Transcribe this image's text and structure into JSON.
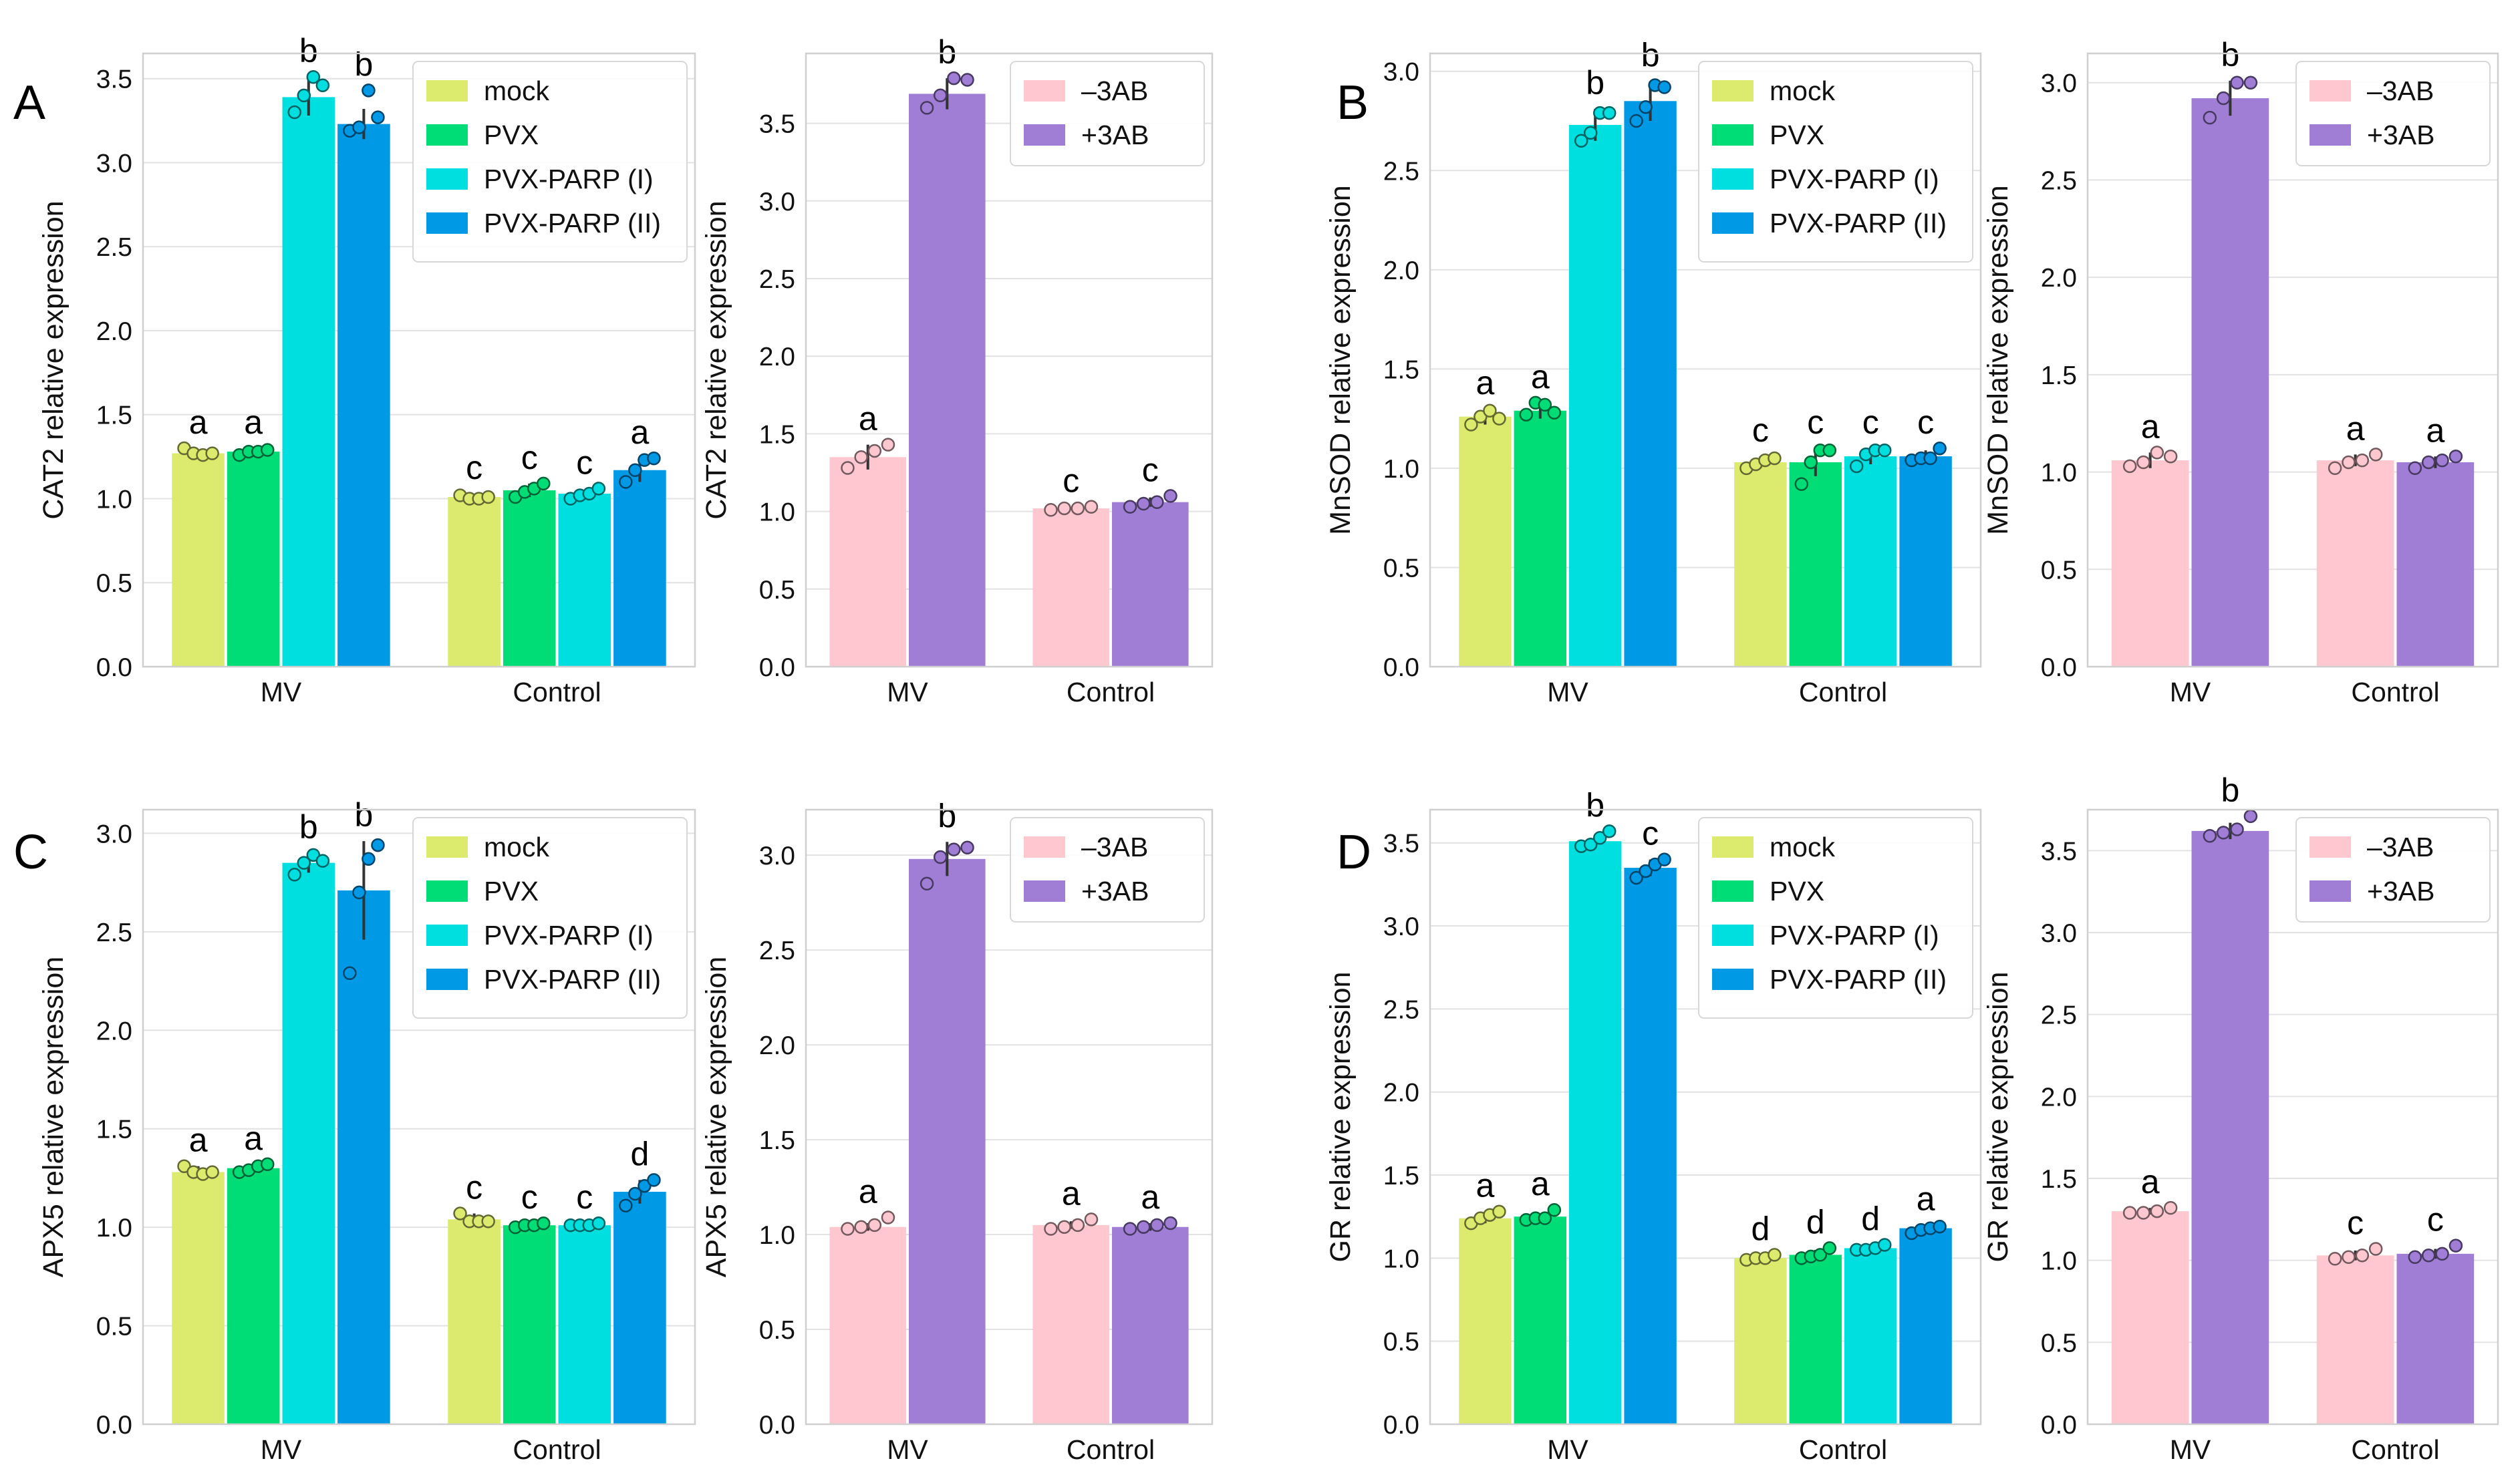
{
  "colors": {
    "mock": "#dcea6e",
    "PVX": "#00dd77",
    "PVX-PARP (I)": "#00dfdf",
    "PVX-PARP (II)": "#0099e6",
    "–3AB": "#ffc8d0",
    "+3AB": "#a07ed6"
  },
  "chart_data": [
    {
      "panel_letter": "A",
      "type": "bar",
      "ylabel": "CAT2 relative expression",
      "ylim": [
        0,
        3.65
      ],
      "yticks": [
        0.0,
        0.5,
        1.0,
        1.5,
        2.0,
        2.5,
        3.0,
        3.5
      ],
      "categories": [
        "MV",
        "Control"
      ],
      "series": [
        {
          "name": "mock",
          "values": [
            1.27,
            1.01
          ],
          "err": [
            0.02,
            0.02
          ],
          "letters": [
            "a",
            "c"
          ],
          "points": [
            [
              1.3,
              1.27,
              1.26,
              1.27
            ],
            [
              1.02,
              1.0,
              1.0,
              1.01
            ]
          ]
        },
        {
          "name": "PVX",
          "values": [
            1.28,
            1.05
          ],
          "err": [
            0.02,
            0.04
          ],
          "letters": [
            "a",
            "c"
          ],
          "points": [
            [
              1.26,
              1.28,
              1.28,
              1.29
            ],
            [
              1.01,
              1.04,
              1.06,
              1.09
            ]
          ]
        },
        {
          "name": "PVX-PARP (I)",
          "values": [
            3.39,
            1.03
          ],
          "err": [
            0.11,
            0.02
          ],
          "letters": [
            "b",
            "c"
          ],
          "points": [
            [
              3.3,
              3.4,
              3.51,
              3.46
            ],
            [
              1.0,
              1.02,
              1.03,
              1.06
            ]
          ]
        },
        {
          "name": "PVX-PARP (II)",
          "values": [
            3.23,
            1.17
          ],
          "err": [
            0.09,
            0.07
          ],
          "letters": [
            "b",
            "a"
          ],
          "points": [
            [
              3.19,
              3.21,
              3.43,
              3.27
            ],
            [
              1.1,
              1.17,
              1.23,
              1.24
            ]
          ]
        }
      ]
    },
    {
      "type": "bar",
      "ylabel": "CAT2 relative expression",
      "ylim": [
        0,
        3.95
      ],
      "yticks": [
        0.0,
        0.5,
        1.0,
        1.5,
        2.0,
        2.5,
        3.0,
        3.5
      ],
      "categories": [
        "MV",
        "Control"
      ],
      "series": [
        {
          "name": "–3AB",
          "values": [
            1.35,
            1.02
          ],
          "err": [
            0.08,
            0.01
          ],
          "letters": [
            "a",
            "c"
          ],
          "points": [
            [
              1.28,
              1.35,
              1.39,
              1.43
            ],
            [
              1.01,
              1.02,
              1.02,
              1.03
            ]
          ]
        },
        {
          "name": "+3AB",
          "values": [
            3.69,
            1.06
          ],
          "err": [
            0.1,
            0.03
          ],
          "letters": [
            "b",
            "c"
          ],
          "points": [
            [
              3.6,
              3.68,
              3.79,
              3.78
            ],
            [
              1.03,
              1.05,
              1.06,
              1.1
            ]
          ]
        }
      ]
    },
    {
      "panel_letter": "B",
      "type": "bar",
      "ylabel": "MnSOD relative expression",
      "ylim": [
        0,
        3.09
      ],
      "yticks": [
        0.0,
        0.5,
        1.0,
        1.5,
        2.0,
        2.5,
        3.0
      ],
      "categories": [
        "MV",
        "Control"
      ],
      "series": [
        {
          "name": "mock",
          "values": [
            1.26,
            1.03
          ],
          "err": [
            0.04,
            0.03
          ],
          "letters": [
            "a",
            "c"
          ],
          "points": [
            [
              1.22,
              1.26,
              1.29,
              1.25
            ],
            [
              1.0,
              1.02,
              1.04,
              1.05
            ]
          ]
        },
        {
          "name": "PVX",
          "values": [
            1.29,
            1.03
          ],
          "err": [
            0.04,
            0.07
          ],
          "letters": [
            "a",
            "c"
          ],
          "points": [
            [
              1.27,
              1.33,
              1.32,
              1.28
            ],
            [
              0.92,
              1.03,
              1.09,
              1.09
            ]
          ]
        },
        {
          "name": "PVX-PARP (I)",
          "values": [
            2.73,
            1.06
          ],
          "err": [
            0.08,
            0.04
          ],
          "letters": [
            "b",
            "c"
          ],
          "points": [
            [
              2.65,
              2.69,
              2.79,
              2.79
            ],
            [
              1.01,
              1.07,
              1.09,
              1.09
            ]
          ]
        },
        {
          "name": "PVX-PARP (II)",
          "values": [
            2.85,
            1.06
          ],
          "err": [
            0.1,
            0.03
          ],
          "letters": [
            "b",
            "c"
          ],
          "points": [
            [
              2.75,
              2.82,
              2.93,
              2.92
            ],
            [
              1.04,
              1.05,
              1.05,
              1.1
            ]
          ]
        }
      ]
    },
    {
      "type": "bar",
      "ylabel": "MnSOD relative expression",
      "ylim": [
        0,
        3.15
      ],
      "yticks": [
        0.0,
        0.5,
        1.0,
        1.5,
        2.0,
        2.5,
        3.0
      ],
      "categories": [
        "MV",
        "Control"
      ],
      "series": [
        {
          "name": "–3AB",
          "values": [
            1.06,
            1.06
          ],
          "err": [
            0.04,
            0.03
          ],
          "letters": [
            "a",
            "a"
          ],
          "points": [
            [
              1.03,
              1.05,
              1.1,
              1.08
            ],
            [
              1.02,
              1.05,
              1.06,
              1.09
            ]
          ]
        },
        {
          "name": "+3AB",
          "values": [
            2.92,
            1.05
          ],
          "err": [
            0.09,
            0.03
          ],
          "letters": [
            "b",
            "a"
          ],
          "points": [
            [
              2.82,
              2.92,
              3.0,
              3.0
            ],
            [
              1.02,
              1.05,
              1.06,
              1.08
            ]
          ]
        }
      ]
    },
    {
      "panel_letter": "C",
      "type": "bar",
      "ylabel": "APX5 relative expression",
      "ylim": [
        0,
        3.12
      ],
      "yticks": [
        0.0,
        0.5,
        1.0,
        1.5,
        2.0,
        2.5,
        3.0
      ],
      "categories": [
        "MV",
        "Control"
      ],
      "series": [
        {
          "name": "mock",
          "values": [
            1.28,
            1.04
          ],
          "err": [
            0.03,
            0.03
          ],
          "letters": [
            "a",
            "c"
          ],
          "points": [
            [
              1.31,
              1.28,
              1.27,
              1.28
            ],
            [
              1.07,
              1.03,
              1.03,
              1.03
            ]
          ]
        },
        {
          "name": "PVX",
          "values": [
            1.3,
            1.01
          ],
          "err": [
            0.02,
            0.01
          ],
          "letters": [
            "a",
            "c"
          ],
          "points": [
            [
              1.28,
              1.29,
              1.31,
              1.32
            ],
            [
              1.0,
              1.01,
              1.01,
              1.02
            ]
          ]
        },
        {
          "name": "PVX-PARP (I)",
          "values": [
            2.85,
            1.01
          ],
          "err": [
            0.05,
            0.01
          ],
          "letters": [
            "b",
            "c"
          ],
          "points": [
            [
              2.79,
              2.85,
              2.89,
              2.86
            ],
            [
              1.01,
              1.01,
              1.01,
              1.02
            ]
          ]
        },
        {
          "name": "PVX-PARP (II)",
          "values": [
            2.71,
            1.18
          ],
          "err": [
            0.25,
            0.06
          ],
          "letters": [
            "b",
            "d"
          ],
          "points": [
            [
              2.29,
              2.7,
              2.87,
              2.94
            ],
            [
              1.11,
              1.17,
              1.21,
              1.24
            ]
          ]
        }
      ]
    },
    {
      "type": "bar",
      "ylabel": "APX5 relative expression",
      "ylim": [
        0,
        3.24
      ],
      "yticks": [
        0.0,
        0.5,
        1.0,
        1.5,
        2.0,
        2.5,
        3.0
      ],
      "categories": [
        "MV",
        "Control"
      ],
      "series": [
        {
          "name": "–3AB",
          "values": [
            1.04,
            1.05
          ],
          "err": [
            0.02,
            0.02
          ],
          "letters": [
            "a",
            "a"
          ],
          "points": [
            [
              1.03,
              1.04,
              1.05,
              1.09
            ],
            [
              1.03,
              1.04,
              1.05,
              1.08
            ]
          ]
        },
        {
          "name": "+3AB",
          "values": [
            2.98,
            1.04
          ],
          "err": [
            0.09,
            0.02
          ],
          "letters": [
            "b",
            "a"
          ],
          "points": [
            [
              2.85,
              2.99,
              3.03,
              3.04
            ],
            [
              1.03,
              1.04,
              1.05,
              1.06
            ]
          ]
        }
      ]
    },
    {
      "panel_letter": "D",
      "type": "bar",
      "ylabel": "GR relative expression",
      "ylim": [
        0,
        3.7
      ],
      "yticks": [
        0.0,
        0.5,
        1.0,
        1.5,
        2.0,
        2.5,
        3.0,
        3.5
      ],
      "categories": [
        "MV",
        "Control"
      ],
      "series": [
        {
          "name": "mock",
          "values": [
            1.24,
            1.0
          ],
          "err": [
            0.03,
            0.01
          ],
          "letters": [
            "a",
            "d"
          ],
          "points": [
            [
              1.21,
              1.24,
              1.26,
              1.28
            ],
            [
              0.99,
              1.0,
              1.0,
              1.02
            ]
          ]
        },
        {
          "name": "PVX",
          "values": [
            1.25,
            1.02
          ],
          "err": [
            0.02,
            0.03
          ],
          "letters": [
            "a",
            "d"
          ],
          "points": [
            [
              1.23,
              1.24,
              1.24,
              1.29
            ],
            [
              1.0,
              1.01,
              1.02,
              1.06
            ]
          ]
        },
        {
          "name": "PVX-PARP (I)",
          "values": [
            3.51,
            1.06
          ],
          "err": [
            0.04,
            0.02
          ],
          "letters": [
            "b",
            "d"
          ],
          "points": [
            [
              3.48,
              3.49,
              3.53,
              3.57
            ],
            [
              1.05,
              1.05,
              1.06,
              1.08
            ]
          ]
        },
        {
          "name": "PVX-PARP (II)",
          "values": [
            3.35,
            1.18
          ],
          "err": [
            0.05,
            0.02
          ],
          "letters": [
            "c",
            "a"
          ],
          "points": [
            [
              3.29,
              3.33,
              3.37,
              3.4
            ],
            [
              1.15,
              1.17,
              1.18,
              1.19
            ]
          ]
        }
      ]
    },
    {
      "type": "bar",
      "ylabel": "GR relative expression",
      "ylim": [
        0,
        3.75
      ],
      "yticks": [
        0.0,
        0.5,
        1.0,
        1.5,
        2.0,
        2.5,
        3.0,
        3.5
      ],
      "categories": [
        "MV",
        "Control"
      ],
      "series": [
        {
          "name": "–3AB",
          "values": [
            1.3,
            1.03
          ],
          "err": [
            0.02,
            0.03
          ],
          "letters": [
            "a",
            "c"
          ],
          "points": [
            [
              1.29,
              1.29,
              1.3,
              1.32
            ],
            [
              1.01,
              1.02,
              1.03,
              1.07
            ]
          ]
        },
        {
          "name": "+3AB",
          "values": [
            3.62,
            1.04
          ],
          "err": [
            0.05,
            0.03
          ],
          "letters": [
            "b",
            "c"
          ],
          "points": [
            [
              3.59,
              3.61,
              3.63,
              3.71
            ],
            [
              1.02,
              1.03,
              1.04,
              1.09
            ]
          ]
        }
      ]
    }
  ]
}
